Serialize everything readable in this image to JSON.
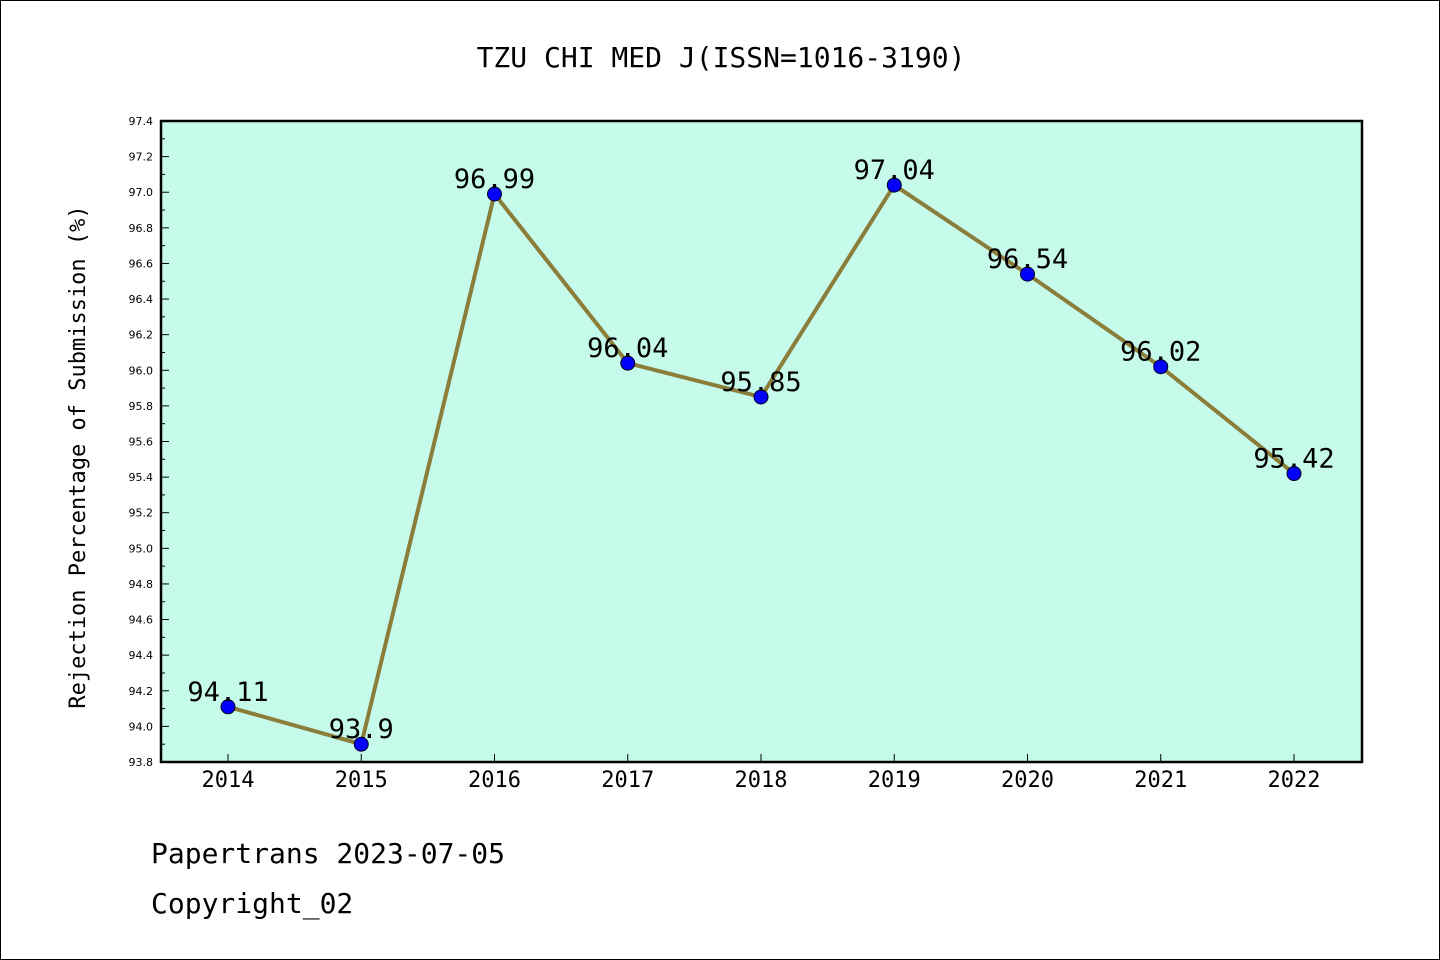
{
  "chart_data": {
    "type": "line",
    "title": "TZU CHI MED J(ISSN=1016-3190)",
    "xlabel": "",
    "ylabel": "Rejection Percentage of Submission (%)",
    "categories": [
      "2014",
      "2015",
      "2016",
      "2017",
      "2018",
      "2019",
      "2020",
      "2021",
      "2022"
    ],
    "series": [
      {
        "values": [
          94.11,
          93.9,
          96.99,
          96.04,
          95.85,
          97.04,
          96.54,
          96.02,
          95.42
        ],
        "data_labels": [
          "94.11",
          "93.9",
          "96.99",
          "96.04",
          "95.85",
          "97.04",
          "96.54",
          "96.02",
          "95.42"
        ]
      }
    ],
    "ylim": [
      93.8,
      97.4
    ],
    "yticks": [
      "93.8",
      "94.0",
      "94.2",
      "94.4",
      "94.6",
      "94.8",
      "95.0",
      "95.2",
      "95.4",
      "95.6",
      "95.8",
      "96.0",
      "96.2",
      "96.4",
      "96.6",
      "96.8",
      "97.0",
      "97.2",
      "97.4"
    ],
    "grid": false,
    "legend": "none",
    "colors": {
      "plot_background": "#c6fbec",
      "line": "#8b7d3a",
      "marker": "#0000ff"
    }
  },
  "footer": {
    "line1": "Papertrans 2023-07-05",
    "line2": "Copyright_02"
  }
}
